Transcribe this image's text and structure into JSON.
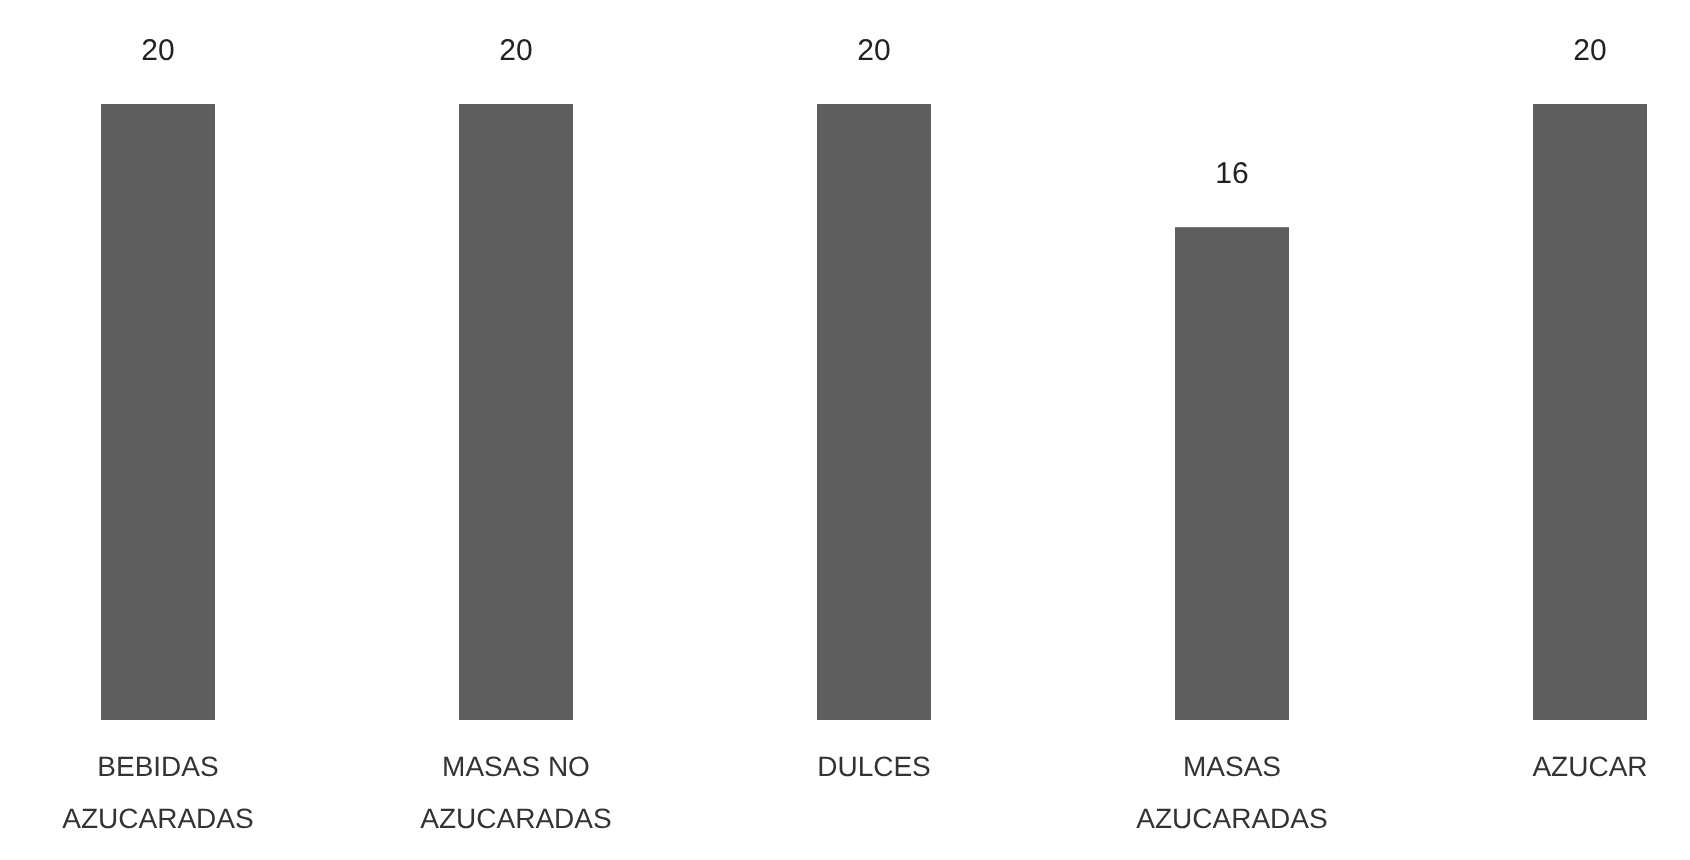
{
  "chart_data": {
    "type": "bar",
    "categories": [
      "BEBIDAS AZUCARADAS",
      "MASAS NO AZUCARADAS",
      "DULCES",
      "MASAS AZUCARADAS",
      "AZUCAR"
    ],
    "values": [
      20,
      20,
      20,
      16,
      20
    ],
    "color": "#5e5e5e",
    "data_labels": true,
    "ylim": [
      0,
      20
    ],
    "tick_labels": "x"
  }
}
